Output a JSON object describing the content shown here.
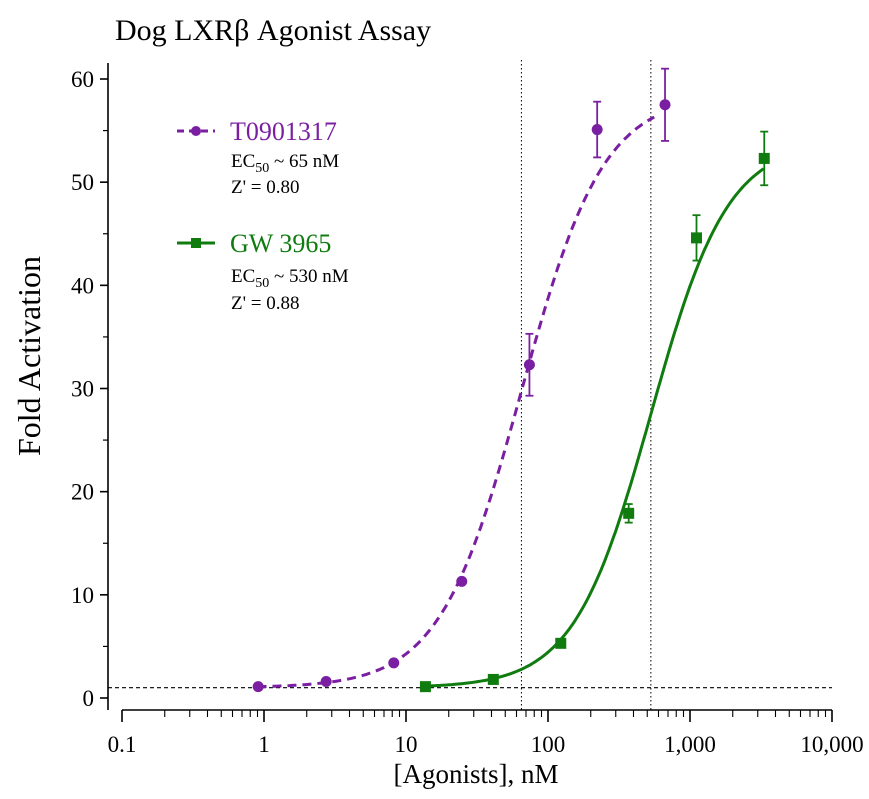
{
  "chart_data": {
    "type": "scatter",
    "title": "Dog LXRβ Agonist Assay",
    "xlabel": "[Agonists], nM",
    "ylabel": "Fold Activation",
    "xscale": "log",
    "xlim": [
      0.1,
      10000
    ],
    "ylim": [
      0,
      62
    ],
    "x_ticks": [
      0.1,
      1,
      10,
      100,
      1000,
      10000
    ],
    "x_tick_labels": [
      "0.1",
      "1",
      "10",
      "100",
      "1,000",
      "10,000"
    ],
    "y_ticks": [
      0,
      10,
      20,
      30,
      40,
      50,
      60
    ],
    "y_tick_labels": [
      "0",
      "10",
      "20",
      "30",
      "40",
      "50",
      "60"
    ],
    "reference_lines": {
      "horizontal_y": 1,
      "vertical_x": [
        65,
        530
      ]
    },
    "legend_position": "top-left",
    "series": [
      {
        "name": "T0901317",
        "color": "#7B1FA2",
        "marker": "circle",
        "line_style": "dashed",
        "ec50_label": "EC",
        "ec50_subscript": "50",
        "ec50_value": " ~ 65 nM",
        "z_label": "Z' = 0.80",
        "x": [
          0.91,
          2.74,
          8.2,
          24.7,
          74,
          222,
          667
        ],
        "y": [
          1.1,
          1.6,
          3.4,
          11.3,
          32.3,
          55.1,
          57.5
        ],
        "err": [
          0,
          0,
          0,
          0,
          3.0,
          2.7,
          3.5
        ],
        "fit": {
          "bottom": 1.0,
          "top": 58.5,
          "ec50": 65,
          "hill": 1.5
        }
      },
      {
        "name": "GW 3965",
        "color": "#107C10",
        "marker": "square",
        "line_style": "solid",
        "ec50_label": "EC",
        "ec50_subscript": "50",
        "ec50_value": " ~ 530 nM",
        "z_label": "Z' = 0.88",
        "x": [
          13.7,
          41.2,
          123,
          370,
          1111,
          3333
        ],
        "y": [
          1.1,
          1.8,
          5.3,
          17.9,
          44.6,
          52.3
        ],
        "err": [
          0,
          0,
          0,
          0.9,
          2.2,
          2.6
        ],
        "fit": {
          "bottom": 1.0,
          "top": 54,
          "ec50": 530,
          "hill": 1.6
        }
      }
    ]
  }
}
